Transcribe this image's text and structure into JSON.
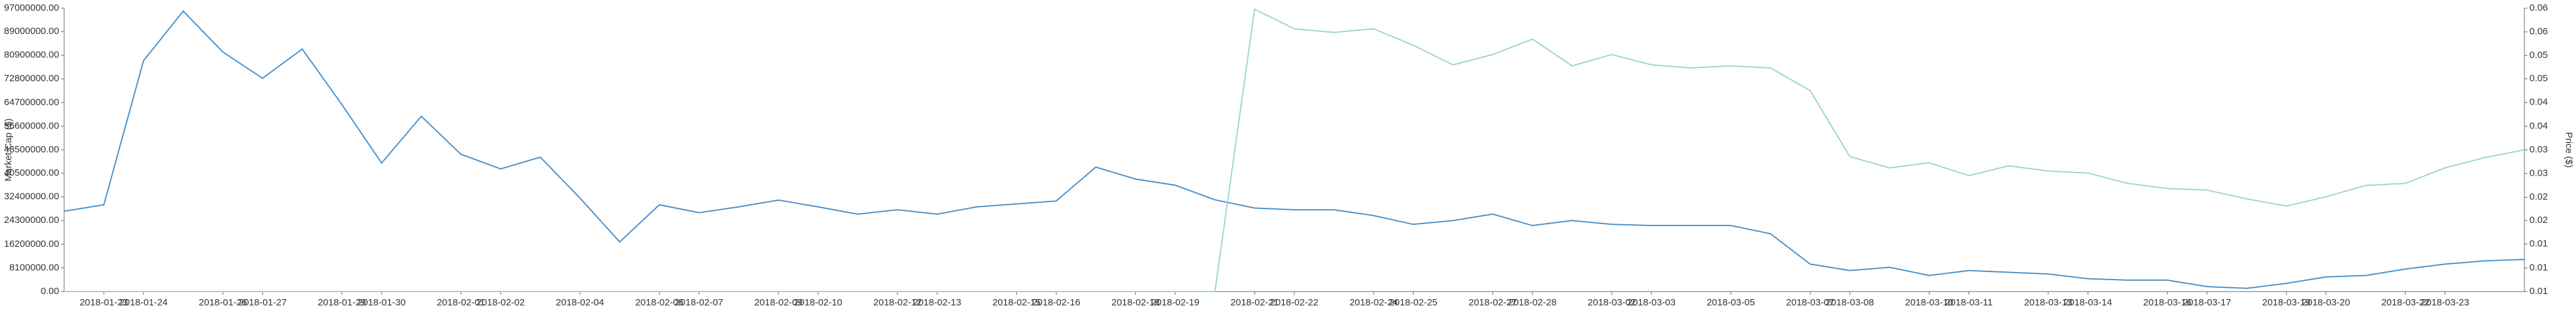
{
  "chart_data": {
    "type": "line",
    "y_label": "Market Cap ($)",
    "y2_label": "Price ($)",
    "x": [
      "2018-01-22",
      "2018-01-23",
      "2018-01-24",
      "2018-01-25",
      "2018-01-26",
      "2018-01-27",
      "2018-01-28",
      "2018-01-29",
      "2018-01-30",
      "2018-01-31",
      "2018-02-01",
      "2018-02-02",
      "2018-02-03",
      "2018-02-04",
      "2018-02-05",
      "2018-02-06",
      "2018-02-07",
      "2018-02-08",
      "2018-02-09",
      "2018-02-10",
      "2018-02-11",
      "2018-02-12",
      "2018-02-13",
      "2018-02-14",
      "2018-02-15",
      "2018-02-16",
      "2018-02-17",
      "2018-02-18",
      "2018-02-19",
      "2018-02-20",
      "2018-02-21",
      "2018-02-22",
      "2018-02-23",
      "2018-02-24",
      "2018-02-25",
      "2018-02-26",
      "2018-02-27",
      "2018-02-28",
      "2018-03-01",
      "2018-03-02",
      "2018-03-03",
      "2018-03-04",
      "2018-03-05",
      "2018-03-06",
      "2018-03-07",
      "2018-03-08",
      "2018-03-09",
      "2018-03-10",
      "2018-03-11",
      "2018-03-12",
      "2018-03-13",
      "2018-03-14",
      "2018-03-15",
      "2018-03-16",
      "2018-03-17",
      "2018-03-18",
      "2018-03-19",
      "2018-03-20",
      "2018-03-21",
      "2018-03-22",
      "2018-03-23",
      "2018-03-24",
      "2018-03-25"
    ],
    "xlim": [
      "2018-01-22",
      "2018-03-25"
    ],
    "xticks": [
      "2018-01-23",
      "2018-01-24",
      "2018-01-26",
      "2018-01-27",
      "2018-01-29",
      "2018-01-30",
      "2018-02-01",
      "2018-02-02",
      "2018-02-04",
      "2018-02-06",
      "2018-02-07",
      "2018-02-09",
      "2018-02-10",
      "2018-02-12",
      "2018-02-13",
      "2018-02-15",
      "2018-02-16",
      "2018-02-18",
      "2018-02-19",
      "2018-02-21",
      "2018-02-22",
      "2018-02-24",
      "2018-02-25",
      "2018-02-27",
      "2018-02-28",
      "2018-03-02",
      "2018-03-03",
      "2018-03-05",
      "2018-03-07",
      "2018-03-08",
      "2018-03-10",
      "2018-03-11",
      "2018-03-13",
      "2018-03-14",
      "2018-03-16",
      "2018-03-17",
      "2018-03-19",
      "2018-03-20",
      "2018-03-22",
      "2018-03-23"
    ],
    "ylim": [
      0,
      97000000
    ],
    "yticks": [
      {
        "value": 0,
        "label": "0.00"
      },
      {
        "value": 8100000,
        "label": "8100000.00"
      },
      {
        "value": 16200000,
        "label": "16200000.00"
      },
      {
        "value": 24300000,
        "label": "24300000.00"
      },
      {
        "value": 32400000,
        "label": "32400000.00"
      },
      {
        "value": 40500000,
        "label": "40500000.00"
      },
      {
        "value": 48500000,
        "label": "48500000.00"
      },
      {
        "value": 56600000,
        "label": "56600000.00"
      },
      {
        "value": 64700000,
        "label": "64700000.00"
      },
      {
        "value": 72800000,
        "label": "72800000.00"
      },
      {
        "value": 80900000,
        "label": "80900000.00"
      },
      {
        "value": 89000000,
        "label": "89000000.00"
      },
      {
        "value": 97000000,
        "label": "97000000.00"
      }
    ],
    "y2lim": [
      0.005,
      0.06
    ],
    "y2ticks": [
      {
        "value": 0.005,
        "label": "0.01"
      },
      {
        "value": 0.0096,
        "label": "0.01"
      },
      {
        "value": 0.0142,
        "label": "0.01"
      },
      {
        "value": 0.0188,
        "label": "0.02"
      },
      {
        "value": 0.0233,
        "label": "0.02"
      },
      {
        "value": 0.0279,
        "label": "0.03"
      },
      {
        "value": 0.0325,
        "label": "0.03"
      },
      {
        "value": 0.0371,
        "label": "0.04"
      },
      {
        "value": 0.0417,
        "label": "0.04"
      },
      {
        "value": 0.0463,
        "label": "0.05"
      },
      {
        "value": 0.0508,
        "label": "0.05"
      },
      {
        "value": 0.0554,
        "label": "0.06"
      },
      {
        "value": 0.06,
        "label": "0.06"
      }
    ],
    "grid": false,
    "series": [
      {
        "color": "#4a90c8",
        "axis": "y",
        "values": [
          27500000,
          29700000,
          79000000,
          96000000,
          82000000,
          73000000,
          83000000,
          64000000,
          44000000,
          60000000,
          47000000,
          42000000,
          46000000,
          32000000,
          17000000,
          29700000,
          27000000,
          29000000,
          31300000,
          29000000,
          26500000,
          28000000,
          26500000,
          29000000,
          30000000,
          31000000,
          42600000,
          38500000,
          36400000,
          31400000,
          28600000,
          28000000,
          28000000,
          26000000,
          23000000,
          24300000,
          26500000,
          22600000,
          24300000,
          23000000,
          22600000,
          22600000,
          22600000,
          19800000,
          9400000,
          7200000,
          8300000,
          5500000,
          7200000,
          6600000,
          6000000,
          4400000,
          3900000,
          3900000,
          1700000,
          1100000,
          2800000,
          5000000,
          5500000,
          7700000,
          9400000,
          10500000,
          11000000
        ]
      },
      {
        "color": "#9fd3d6",
        "axis": "y2",
        "values": [
          0.005,
          0.005,
          0.005,
          0.005,
          0.005,
          0.005,
          0.005,
          0.005,
          0.005,
          0.005,
          0.005,
          0.005,
          0.005,
          0.005,
          0.005,
          0.005,
          0.005,
          0.005,
          0.005,
          0.005,
          0.005,
          0.005,
          0.005,
          0.005,
          0.005,
          0.005,
          0.005,
          0.005,
          0.005,
          0.005,
          0.0598,
          0.056,
          0.0553,
          0.056,
          0.0528,
          0.049,
          0.051,
          0.054,
          0.0488,
          0.051,
          0.049,
          0.0484,
          0.0488,
          0.0484,
          0.044,
          0.0312,
          0.029,
          0.03,
          0.0275,
          0.0294,
          0.0284,
          0.028,
          0.026,
          0.025,
          0.0247,
          0.023,
          0.0216,
          0.0234,
          0.0256,
          0.026,
          0.029,
          0.031,
          0.0325
        ]
      }
    ]
  }
}
